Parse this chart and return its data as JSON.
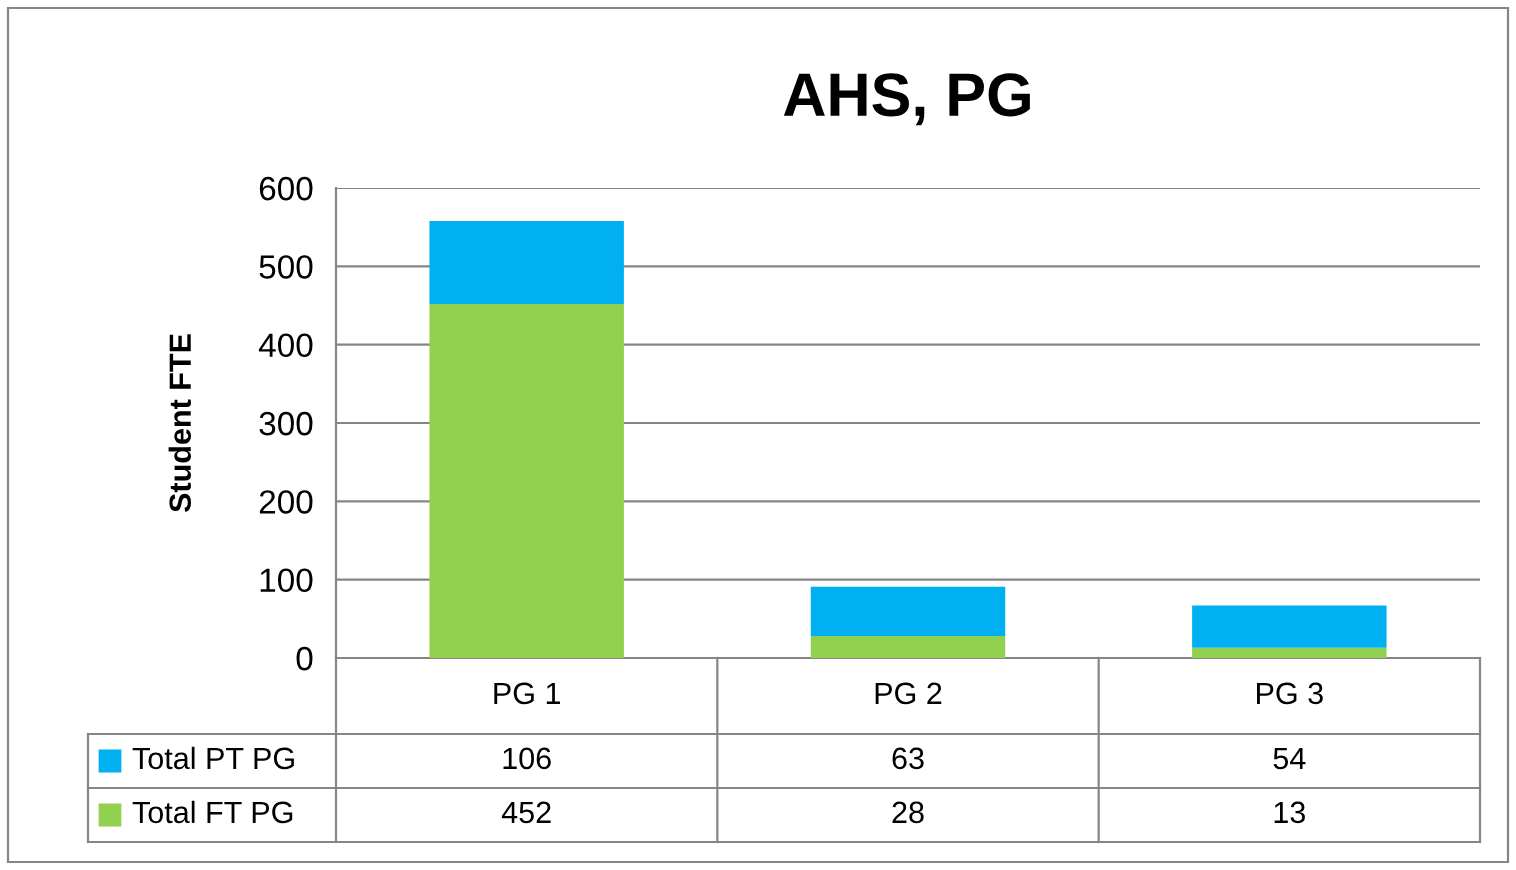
{
  "chart_data": {
    "type": "bar",
    "title": "AHS, PG",
    "ylabel": "Student FTE",
    "stacked": true,
    "categories": [
      "PG 1",
      "PG 2",
      "PG 3"
    ],
    "series": [
      {
        "name": "Total FT PG",
        "color": "#92d050",
        "values": [
          452,
          28,
          13
        ]
      },
      {
        "name": "Total PT PG",
        "color": "#00b0f0",
        "values": [
          106,
          63,
          54
        ]
      }
    ],
    "ylim": [
      0,
      600
    ],
    "yticks": [
      0,
      100,
      200,
      300,
      400,
      500,
      600
    ],
    "grid": "y",
    "legend": "bottom",
    "data_labels": true
  }
}
